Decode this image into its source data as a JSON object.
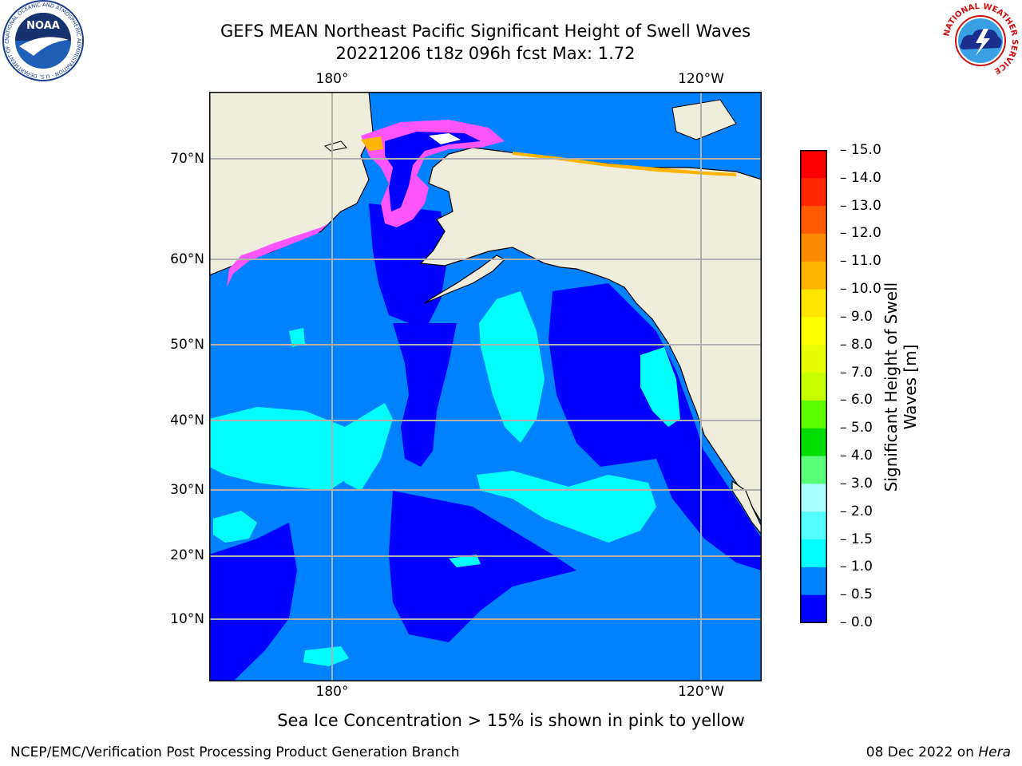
{
  "title_line1": "GEFS MEAN Northeast Pacific Significant Height of Swell Waves",
  "title_line2": "20221206 t18z 096h fcst   Max: 1.72",
  "map": {
    "lon_labels_top": [
      "180°",
      "120°W"
    ],
    "lon_labels_bottom": [
      "180°",
      "120°W"
    ],
    "lat_labels": [
      "70°N",
      "60°N",
      "50°N",
      "40°N",
      "30°N",
      "20°N",
      "10°N"
    ]
  },
  "colorbar": {
    "label_line1": "Significant Height of Swell",
    "label_line2": "Waves [m]",
    "ticks": [
      "15.0",
      "14.0",
      "13.0",
      "12.0",
      "11.0",
      "10.0",
      "9.0",
      "8.0",
      "7.0",
      "6.0",
      "5.0",
      "4.0",
      "3.0",
      "2.0",
      "1.5",
      "1.0",
      "0.5",
      "0.0"
    ],
    "colors": [
      "#ff0000",
      "#ff2800",
      "#ff5a00",
      "#ff8c00",
      "#ffb400",
      "#ffe600",
      "#ffff00",
      "#e6ff00",
      "#c8ff00",
      "#5aff00",
      "#00dc00",
      "#5aff78",
      "#aaffff",
      "#55ffff",
      "#00ffff",
      "#0082ff",
      "#0000ff"
    ]
  },
  "colors": {
    "land": "#efeddc",
    "ocean_low": "#0000ff",
    "ocean_mid": "#0082ff",
    "ocean_high": "#00ffff",
    "ice_pink": "#ff55ff",
    "ice_orange": "#ffb400",
    "grid": "#b0b0b0"
  },
  "note": "Sea Ice Concentration > 15% is shown in pink to yellow",
  "credit_left": "NCEP/EMC/Verification Post Processing Product Generation Branch",
  "credit_right_date": "08 Dec 2022 on ",
  "credit_right_host": "Hera",
  "logos": {
    "noaa_text": "NOAA",
    "noaa_ring": "NATIONAL OCEANIC AND ATMOSPHERIC ADMINISTRATION · U.S. DEPARTMENT OF COMMERCE",
    "nws_ring": "NATIONAL WEATHER SERVICE"
  }
}
